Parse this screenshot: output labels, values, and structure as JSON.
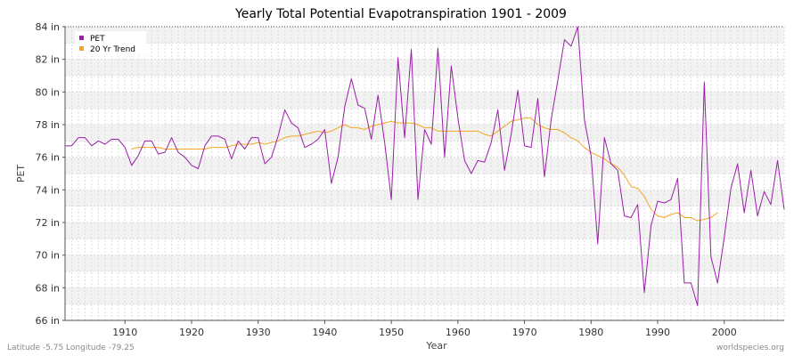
{
  "chart_data": {
    "type": "line",
    "title": "Yearly Total Potential Evapotranspiration 1901 - 2009",
    "xlabel": "Year",
    "ylabel": "PET",
    "xlim": [
      1901,
      2009
    ],
    "ylim": [
      66,
      84
    ],
    "x_ticks": [
      1910,
      1920,
      1930,
      1940,
      1950,
      1960,
      1970,
      1980,
      1990,
      2000
    ],
    "y_ticks": [
      {
        "value": 66,
        "label": "66 in"
      },
      {
        "value": 68,
        "label": "68 in"
      },
      {
        "value": 70,
        "label": "70 in"
      },
      {
        "value": 72,
        "label": "72 in"
      },
      {
        "value": 74,
        "label": "74 in"
      },
      {
        "value": 76,
        "label": "76 in"
      },
      {
        "value": 78,
        "label": "78 in"
      },
      {
        "value": 80,
        "label": "80 in"
      },
      {
        "value": 82,
        "label": "82 in"
      },
      {
        "value": 84,
        "label": "84 in"
      }
    ],
    "grid": true,
    "legend_position": "top-left",
    "series": [
      {
        "name": "PET",
        "color": "#9b1fa8",
        "x": [
          1901,
          1902,
          1903,
          1904,
          1905,
          1906,
          1907,
          1908,
          1909,
          1910,
          1911,
          1912,
          1913,
          1914,
          1915,
          1916,
          1917,
          1918,
          1919,
          1920,
          1921,
          1922,
          1923,
          1924,
          1925,
          1926,
          1927,
          1928,
          1929,
          1930,
          1931,
          1932,
          1933,
          1934,
          1935,
          1936,
          1937,
          1938,
          1939,
          1940,
          1941,
          1942,
          1943,
          1944,
          1945,
          1946,
          1947,
          1948,
          1949,
          1950,
          1951,
          1952,
          1953,
          1954,
          1955,
          1956,
          1957,
          1958,
          1959,
          1960,
          1961,
          1962,
          1963,
          1964,
          1965,
          1966,
          1967,
          1968,
          1969,
          1970,
          1971,
          1972,
          1973,
          1974,
          1975,
          1976,
          1977,
          1978,
          1979,
          1980,
          1981,
          1982,
          1983,
          1984,
          1985,
          1986,
          1987,
          1988,
          1989,
          1990,
          1991,
          1992,
          1993,
          1994,
          1995,
          1996,
          1997,
          1998,
          1999,
          2000,
          2001,
          2002,
          2003,
          2004,
          2005,
          2006,
          2007,
          2008,
          2009
        ],
        "values": [
          76.7,
          76.7,
          77.2,
          77.2,
          76.7,
          77.0,
          76.8,
          77.1,
          77.1,
          76.6,
          75.5,
          76.1,
          77.0,
          77.0,
          76.2,
          76.3,
          77.2,
          76.3,
          76.0,
          75.5,
          75.3,
          76.7,
          77.3,
          77.3,
          77.1,
          75.9,
          77.0,
          76.5,
          77.2,
          77.2,
          75.6,
          76.0,
          77.3,
          78.9,
          78.1,
          77.8,
          76.6,
          76.8,
          77.1,
          77.7,
          74.4,
          76.0,
          79.1,
          80.8,
          79.2,
          79.0,
          77.1,
          79.8,
          76.9,
          73.4,
          82.1,
          77.2,
          82.6,
          73.4,
          77.7,
          76.8,
          82.7,
          76.0,
          81.6,
          78.4,
          75.8,
          75.0,
          75.8,
          75.7,
          76.9,
          78.9,
          75.2,
          77.4,
          80.1,
          76.7,
          76.6,
          79.6,
          74.8,
          78.3,
          80.7,
          83.2,
          82.8,
          84.0,
          78.3,
          76.1,
          70.7,
          77.2,
          75.6,
          75.2,
          72.4,
          72.3,
          73.1,
          67.7,
          71.8,
          73.3,
          73.2,
          73.4,
          74.7,
          68.3,
          68.3,
          66.9,
          80.6,
          69.9,
          68.3,
          71.1,
          74.1,
          75.6,
          72.6,
          75.2,
          72.4,
          73.9,
          73.1,
          75.8,
          72.8
        ]
      },
      {
        "name": "20 Yr Trend",
        "color": "#f5a623",
        "x": [
          1911,
          1912,
          1913,
          1914,
          1915,
          1916,
          1917,
          1918,
          1919,
          1920,
          1921,
          1922,
          1923,
          1924,
          1925,
          1926,
          1927,
          1928,
          1929,
          1930,
          1931,
          1932,
          1933,
          1934,
          1935,
          1936,
          1937,
          1938,
          1939,
          1940,
          1941,
          1942,
          1943,
          1944,
          1945,
          1946,
          1947,
          1948,
          1949,
          1950,
          1951,
          1952,
          1953,
          1954,
          1955,
          1956,
          1957,
          1958,
          1959,
          1960,
          1961,
          1962,
          1963,
          1964,
          1965,
          1966,
          1967,
          1968,
          1969,
          1970,
          1971,
          1972,
          1973,
          1974,
          1975,
          1976,
          1977,
          1978,
          1979,
          1980,
          1981,
          1982,
          1983,
          1984,
          1985,
          1986,
          1987,
          1988,
          1989,
          1990,
          1991,
          1992,
          1993,
          1994,
          1995,
          1996,
          1997,
          1998,
          1999
        ],
        "values": [
          76.5,
          76.6,
          76.6,
          76.6,
          76.6,
          76.5,
          76.5,
          76.5,
          76.5,
          76.5,
          76.5,
          76.5,
          76.6,
          76.6,
          76.6,
          76.7,
          76.8,
          76.8,
          76.8,
          76.9,
          76.8,
          76.9,
          77.0,
          77.2,
          77.3,
          77.3,
          77.4,
          77.5,
          77.6,
          77.5,
          77.6,
          77.8,
          78.0,
          77.8,
          77.8,
          77.7,
          77.9,
          78.0,
          78.1,
          78.2,
          78.1,
          78.1,
          78.1,
          78.0,
          77.8,
          77.8,
          77.6,
          77.6,
          77.6,
          77.6,
          77.6,
          77.6,
          77.6,
          77.4,
          77.3,
          77.6,
          77.9,
          78.2,
          78.3,
          78.4,
          78.4,
          78.0,
          77.8,
          77.7,
          77.7,
          77.5,
          77.2,
          77.0,
          76.6,
          76.3,
          76.1,
          75.9,
          75.6,
          75.4,
          74.9,
          74.2,
          74.1,
          73.6,
          72.8,
          72.4,
          72.3,
          72.5,
          72.6,
          72.3,
          72.3,
          72.1,
          72.2,
          72.3,
          72.6
        ]
      }
    ]
  },
  "footer": {
    "coordinates": "Latitude -5.75 Longitude -79.25",
    "source": "worldspecies.org"
  }
}
